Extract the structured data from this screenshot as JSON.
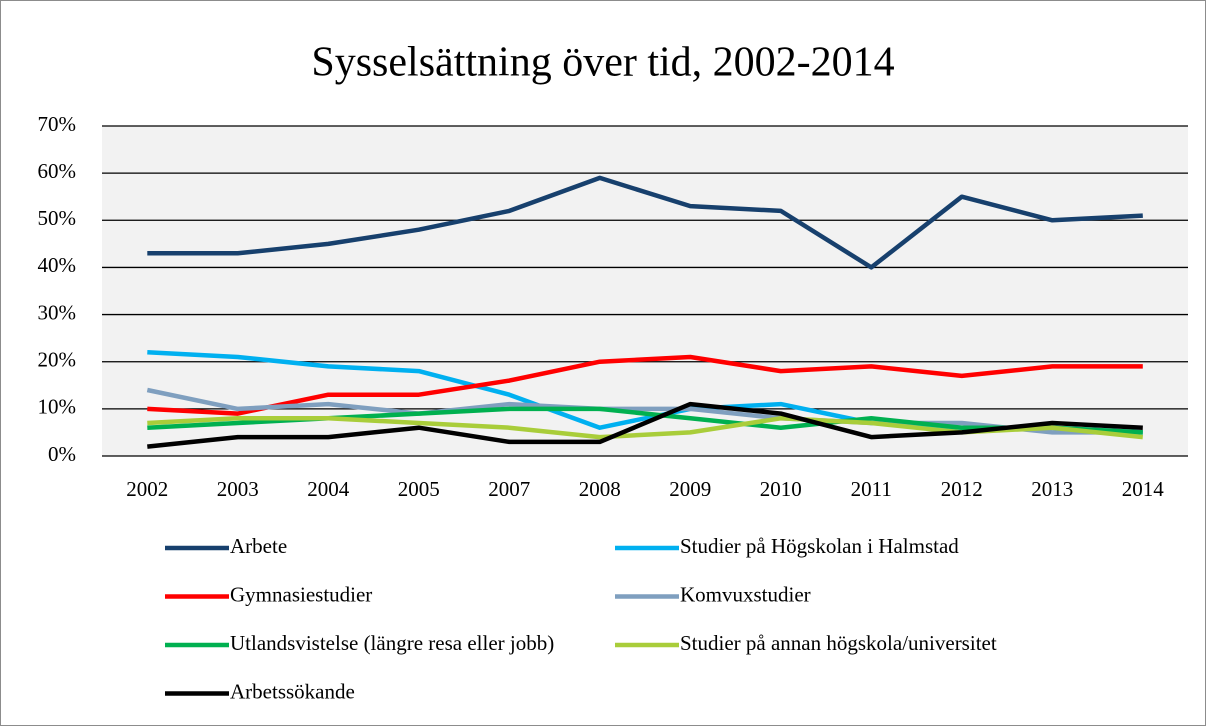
{
  "chart_data": {
    "type": "line",
    "title": "Sysselsättning över tid, 2002-2014",
    "categories": [
      "2002",
      "2003",
      "2004",
      "2005",
      "2007",
      "2008",
      "2009",
      "2010",
      "2011",
      "2012",
      "2013",
      "2014"
    ],
    "ylim": [
      0,
      70
    ],
    "yticks": [
      {
        "value": 0,
        "label": "0%"
      },
      {
        "value": 10,
        "label": "10%"
      },
      {
        "value": 20,
        "label": "20%"
      },
      {
        "value": 30,
        "label": "30%"
      },
      {
        "value": 40,
        "label": "40%"
      },
      {
        "value": 50,
        "label": "50%"
      },
      {
        "value": 60,
        "label": "60%"
      },
      {
        "value": 70,
        "label": "70%"
      }
    ],
    "grid": true,
    "legend": "bottom",
    "series": [
      {
        "name": "Arbete",
        "color": "#17406d",
        "values": [
          43,
          43,
          45,
          48,
          52,
          59,
          53,
          52,
          40,
          55,
          50,
          51
        ]
      },
      {
        "name": "Studier på Högskolan i Halmstad",
        "color": "#00b0f0",
        "values": [
          22,
          21,
          19,
          18,
          13,
          6,
          10,
          11,
          7,
          6,
          6,
          5
        ]
      },
      {
        "name": "Gymnasiestudier",
        "color": "#ff0000",
        "values": [
          10,
          9,
          13,
          13,
          16,
          20,
          21,
          18,
          19,
          17,
          19,
          19
        ]
      },
      {
        "name": "Komvuxstudier",
        "color": "#7f9fbf",
        "values": [
          14,
          10,
          11,
          9,
          11,
          10,
          10,
          8,
          7,
          7,
          5,
          5
        ]
      },
      {
        "name": "Utlandsvistelse (längre resa eller jobb)",
        "color": "#00b050",
        "values": [
          6,
          7,
          8,
          9,
          10,
          10,
          8,
          6,
          8,
          6,
          6,
          5
        ]
      },
      {
        "name": "Studier på annan högskola/universitet",
        "color": "#a9cd3a",
        "values": [
          7,
          8,
          8,
          7,
          6,
          4,
          5,
          8,
          7,
          5,
          6,
          4
        ]
      },
      {
        "name": "Arbetssökande",
        "color": "#000000",
        "values": [
          2,
          4,
          4,
          6,
          3,
          3,
          11,
          9,
          4,
          5,
          7,
          6
        ]
      }
    ]
  }
}
